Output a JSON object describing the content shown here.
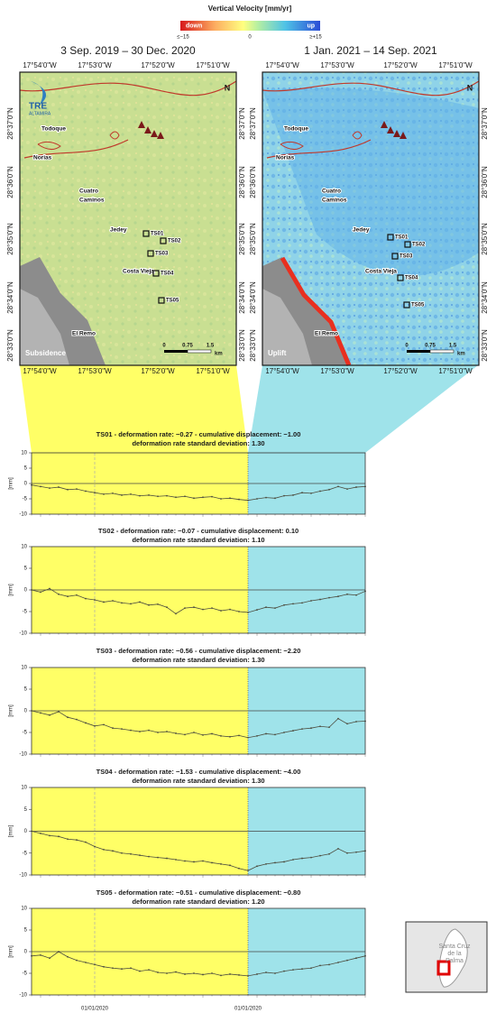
{
  "legend": {
    "title": "Vertical Velocity [mm/yr]",
    "low": "down",
    "high": "up",
    "min_label": "≤−15",
    "mid_label": "0",
    "max_label": "≥+15"
  },
  "maps": [
    {
      "title": "3 Sep. 2019 – 30 Dec. 2020",
      "corner_label": "Subsidence",
      "north": "N",
      "logo": "TRE",
      "logo_sub": "ALTAMIRA",
      "x_ticks": [
        "17°54'0\"W",
        "17°53'0\"W",
        "17°52'0\"W",
        "17°51'0\"W"
      ],
      "y_ticks": [
        "28°37'0\"N",
        "28°36'0\"N",
        "28°35'0\"N",
        "28°34'0\"N",
        "28°33'0\"N"
      ],
      "places": [
        "Todoque",
        "Norias",
        "Cuatro",
        "Caminos",
        "Jedey",
        "Costa Vieja",
        "El Remo"
      ],
      "points": [
        "TS01",
        "TS02",
        "TS03",
        "TS04",
        "TS05"
      ],
      "scale": [
        "0",
        "0.75",
        "1.5",
        "km"
      ]
    },
    {
      "title": "1 Jan. 2021 – 14 Sep. 2021",
      "corner_label": "Uplift",
      "north": "N",
      "x_ticks": [
        "17°54'0\"W",
        "17°53'0\"W",
        "17°52'0\"W",
        "17°51'0\"W"
      ],
      "y_ticks": [
        "28°37'0\"N",
        "28°36'0\"N",
        "28°35'0\"N",
        "28°34'0\"N",
        "28°33'0\"N"
      ],
      "places": [
        "Todoque",
        "Norias",
        "Cuatro",
        "Caminos",
        "Jedey",
        "Costa Vieja",
        "El Remo"
      ],
      "points": [
        "TS01",
        "TS02",
        "TS03",
        "TS04",
        "TS05"
      ],
      "scale": [
        "0",
        "0.75",
        "1.5",
        "km"
      ]
    }
  ],
  "inset": {
    "label": [
      "Santa Cruz",
      "de la",
      "Palma"
    ]
  },
  "chart_data": [
    {
      "type": "line",
      "title": "TS01 - deformation rate: −0.27 - cumulative displacement: −1.00",
      "subtitle": "deformation rate standard deviation: 1.30",
      "ylabel": "[mm]",
      "color": "#4d4d40",
      "period_colors": [
        "#ffff66",
        "#9fe3ea"
      ],
      "ylim": [
        -10,
        10
      ],
      "yticks": [
        -10,
        -5,
        0,
        5,
        10
      ],
      "categories": [
        null,
        null,
        null,
        null,
        null,
        null,
        null,
        null,
        null,
        null,
        null,
        null,
        null,
        null,
        null,
        null,
        null,
        null,
        null,
        null,
        null,
        null,
        null,
        null,
        null,
        null,
        null,
        null,
        null,
        null,
        null,
        null,
        null,
        null,
        null,
        null,
        null,
        null
      ],
      "values": [
        -0.5,
        -1,
        -1.5,
        -1.2,
        -2,
        -1.8,
        -2.5,
        -3,
        -3.5,
        -3.2,
        -3.8,
        -3.5,
        -4,
        -3.8,
        -4.2,
        -4,
        -4.5,
        -4.2,
        -4.8,
        -4.5,
        -4.3,
        -5,
        -4.8,
        -5.2,
        -5.5,
        -5,
        -4.6,
        -4.8,
        -4,
        -3.8,
        -3,
        -3.2,
        -2.5,
        -2,
        -1,
        -1.8,
        -1.2,
        -1
      ]
    },
    {
      "type": "line",
      "title": "TS02 - deformation rate: −0.07 - cumulative displacement: 0.10",
      "subtitle": "deformation rate standard deviation: 1.10",
      "ylabel": "[mm]",
      "color": "#4d4d40",
      "period_colors": [
        "#ffff66",
        "#9fe3ea"
      ],
      "ylim": [
        -10,
        10
      ],
      "yticks": [
        -10,
        -5,
        0,
        5,
        10
      ],
      "categories": [
        null,
        null,
        null,
        null,
        null,
        null,
        null,
        null,
        null,
        null,
        null,
        null,
        null,
        null,
        null,
        null,
        null,
        null,
        null,
        null,
        null,
        null,
        null,
        null,
        null,
        null,
        null,
        null,
        null,
        null,
        null,
        null,
        null,
        null,
        null,
        null,
        null,
        null
      ],
      "values": [
        0,
        -0.5,
        0.3,
        -1,
        -1.5,
        -1.2,
        -2,
        -2.3,
        -2.8,
        -2.5,
        -3,
        -3.2,
        -2.8,
        -3.5,
        -3.3,
        -4,
        -5.5,
        -4.2,
        -4,
        -4.5,
        -4.2,
        -4.8,
        -4.5,
        -5,
        -5.2,
        -4.6,
        -4,
        -4.2,
        -3.5,
        -3.2,
        -3,
        -2.5,
        -2.2,
        -1.8,
        -1.5,
        -1,
        -1.2,
        -0.3
      ]
    },
    {
      "type": "line",
      "title": "TS03 - deformation rate: −0.56 - cumulative displacement: −2.20",
      "subtitle": "deformation rate standard deviation: 1.30",
      "ylabel": "[mm]",
      "color": "#4d4d40",
      "period_colors": [
        "#ffff66",
        "#9fe3ea"
      ],
      "ylim": [
        -10,
        10
      ],
      "yticks": [
        -10,
        -5,
        0,
        5,
        10
      ],
      "categories": [
        null,
        null,
        null,
        null,
        null,
        null,
        null,
        null,
        null,
        null,
        null,
        null,
        null,
        null,
        null,
        null,
        null,
        null,
        null,
        null,
        null,
        null,
        null,
        null,
        null,
        null,
        null,
        null,
        null,
        null,
        null,
        null,
        null,
        null,
        null,
        null,
        null,
        null
      ],
      "values": [
        0,
        -0.5,
        -1,
        -0.2,
        -1.5,
        -2,
        -2.8,
        -3.5,
        -3.2,
        -4,
        -4.2,
        -4.5,
        -4.8,
        -4.5,
        -5,
        -4.8,
        -5.2,
        -5.5,
        -5,
        -5.6,
        -5.3,
        -5.8,
        -6,
        -5.7,
        -6.2,
        -5.8,
        -5.3,
        -5.5,
        -5,
        -4.6,
        -4.2,
        -4,
        -3.6,
        -3.8,
        -1.8,
        -3,
        -2.5,
        -2.4
      ]
    },
    {
      "type": "line",
      "title": "TS04 - deformation rate: −1.53 - cumulative displacement: −4.00",
      "subtitle": "deformation rate standard deviation: 1.30",
      "ylabel": "[mm]",
      "color": "#4d4d40",
      "period_colors": [
        "#ffff66",
        "#9fe3ea"
      ],
      "ylim": [
        -10,
        10
      ],
      "yticks": [
        -10,
        -5,
        0,
        5,
        10
      ],
      "categories": [
        null,
        null,
        null,
        null,
        null,
        null,
        null,
        null,
        null,
        null,
        null,
        null,
        null,
        null,
        null,
        null,
        null,
        null,
        null,
        null,
        null,
        null,
        null,
        null,
        null,
        null,
        null,
        null,
        null,
        null,
        null,
        null,
        null,
        null,
        null,
        null,
        null,
        null
      ],
      "values": [
        0,
        -0.5,
        -1,
        -1.2,
        -1.8,
        -2,
        -2.5,
        -3.5,
        -4.2,
        -4.5,
        -5,
        -5.2,
        -5.5,
        -5.8,
        -6,
        -6.2,
        -6.5,
        -6.8,
        -7,
        -6.8,
        -7.2,
        -7.5,
        -7.8,
        -8.5,
        -9,
        -8,
        -7.5,
        -7.2,
        -7,
        -6.5,
        -6.2,
        -6,
        -5.6,
        -5.2,
        -4,
        -5,
        -4.8,
        -4.5
      ]
    },
    {
      "type": "line",
      "title": "TS05 - deformation rate: −0.51 - cumulative displacement: −0.80",
      "subtitle": "deformation rate standard deviation: 1.20",
      "ylabel": "[mm]",
      "color": "#4d4d40",
      "period_colors": [
        "#ffff66",
        "#9fe3ea"
      ],
      "ylim": [
        -10,
        10
      ],
      "yticks": [
        -10,
        -5,
        0,
        5,
        10
      ],
      "categories": [
        null,
        null,
        null,
        null,
        null,
        null,
        null,
        "01/01/2020",
        null,
        null,
        null,
        null,
        null,
        null,
        null,
        null,
        null,
        null,
        null,
        null,
        null,
        null,
        null,
        null,
        "01/01/2020",
        null,
        null,
        null,
        null,
        null,
        null,
        null,
        null,
        null,
        null,
        null,
        null,
        null
      ],
      "values": [
        -1,
        -0.8,
        -1.5,
        0,
        -1.2,
        -2,
        -2.5,
        -3,
        -3.5,
        -3.8,
        -4,
        -3.8,
        -4.5,
        -4.2,
        -4.8,
        -5,
        -4.7,
        -5.2,
        -5,
        -5.3,
        -5,
        -5.5,
        -5.2,
        -5.4,
        -5.6,
        -5.2,
        -4.8,
        -5,
        -4.5,
        -4.2,
        -4,
        -3.8,
        -3.2,
        -3,
        -2.5,
        -2,
        -1.5,
        -1
      ]
    }
  ]
}
